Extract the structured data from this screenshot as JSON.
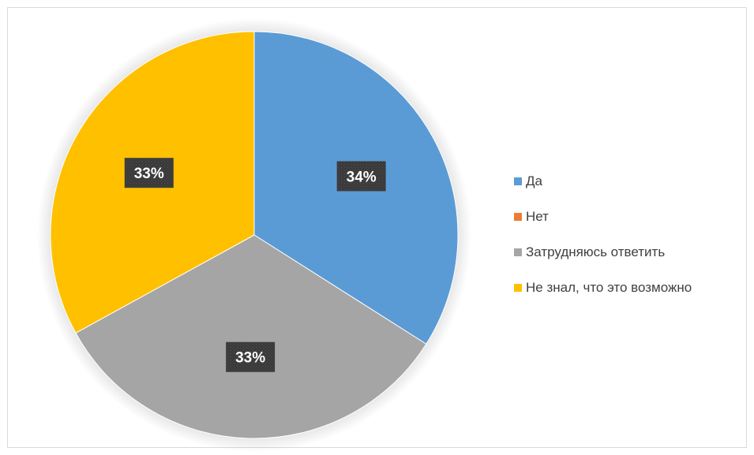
{
  "chart_data": {
    "type": "pie",
    "categories": [
      "Да",
      "Нет",
      "Затрудняюсь ответить",
      "Не знал, что это возможно"
    ],
    "values": [
      34,
      0,
      33,
      33
    ],
    "data_labels": [
      "34%",
      "",
      "33%",
      "33%"
    ],
    "colors": [
      "#5b9bd5",
      "#ed7d31",
      "#a5a5a5",
      "#ffc000"
    ],
    "legend_position": "right",
    "title": ""
  }
}
